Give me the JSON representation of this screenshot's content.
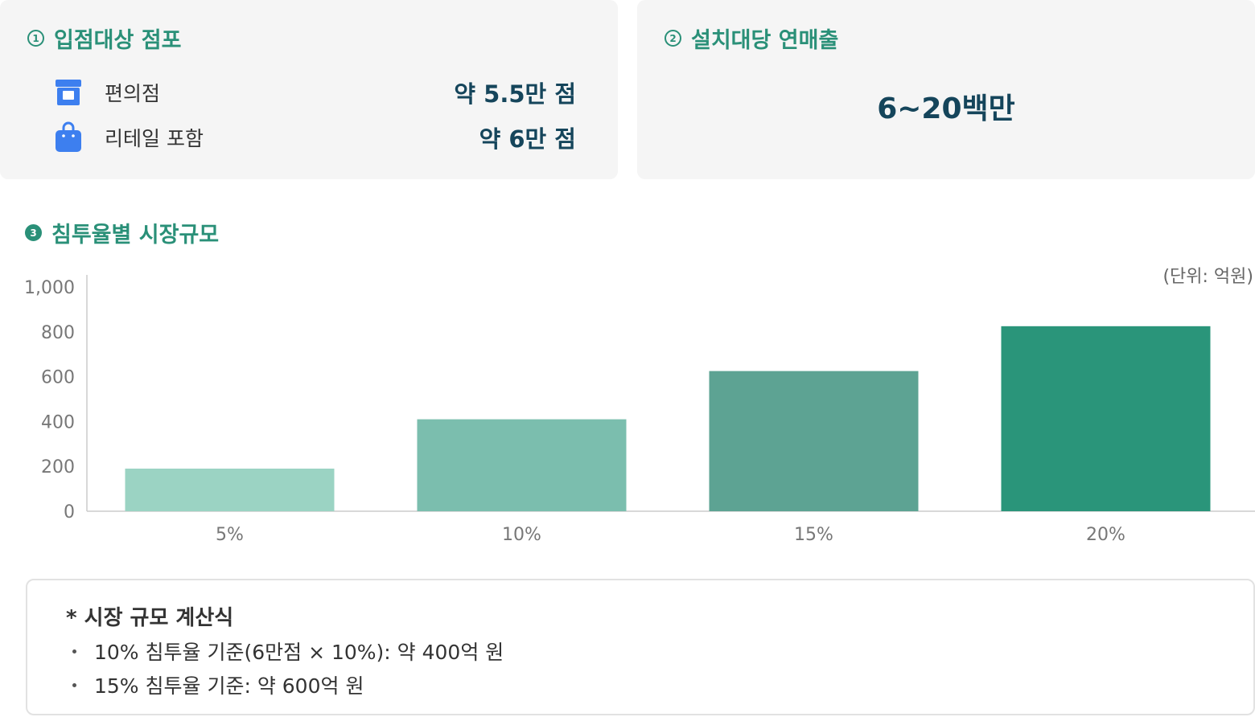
{
  "section1": {
    "number": "1",
    "title": "입점대상 점포",
    "rows": [
      {
        "icon": "store-icon",
        "label": "편의점",
        "value": "약 5.5만 점"
      },
      {
        "icon": "shopping-bag-icon",
        "label": "리테일 포함",
        "value": "약 6만 점"
      }
    ]
  },
  "section2": {
    "number": "2",
    "title": "설치대당 연매출",
    "value": "6~20백만"
  },
  "section3": {
    "number": "3",
    "title": "침투율별 시장규모",
    "unit": "(단위: 억원)"
  },
  "chart_data": {
    "type": "bar",
    "categories": [
      "5%",
      "10%",
      "15%",
      "20%"
    ],
    "values": [
      190,
      410,
      625,
      825
    ],
    "ylim": [
      0,
      1000
    ],
    "yticks": [
      0,
      200,
      400,
      600,
      800,
      1000
    ],
    "ytick_labels": [
      "0",
      "200",
      "400",
      "600",
      "800",
      "1,000"
    ],
    "bar_colors": [
      "#9bd3c3",
      "#7bbeae",
      "#5da393",
      "#2a957a"
    ],
    "grid": false,
    "xlabel": "",
    "ylabel": ""
  },
  "note": {
    "title": "* 시장 규모 계산식",
    "items": [
      "10% 침투율 기준(6만점 × 10%): 약 400억 원",
      "15% 침투율 기준: 약 600억 원"
    ]
  },
  "colors": {
    "accent": "#2a9078",
    "value_text": "#15455b",
    "card_bg": "#f5f5f5",
    "icon_blue": "#3d7fef"
  }
}
